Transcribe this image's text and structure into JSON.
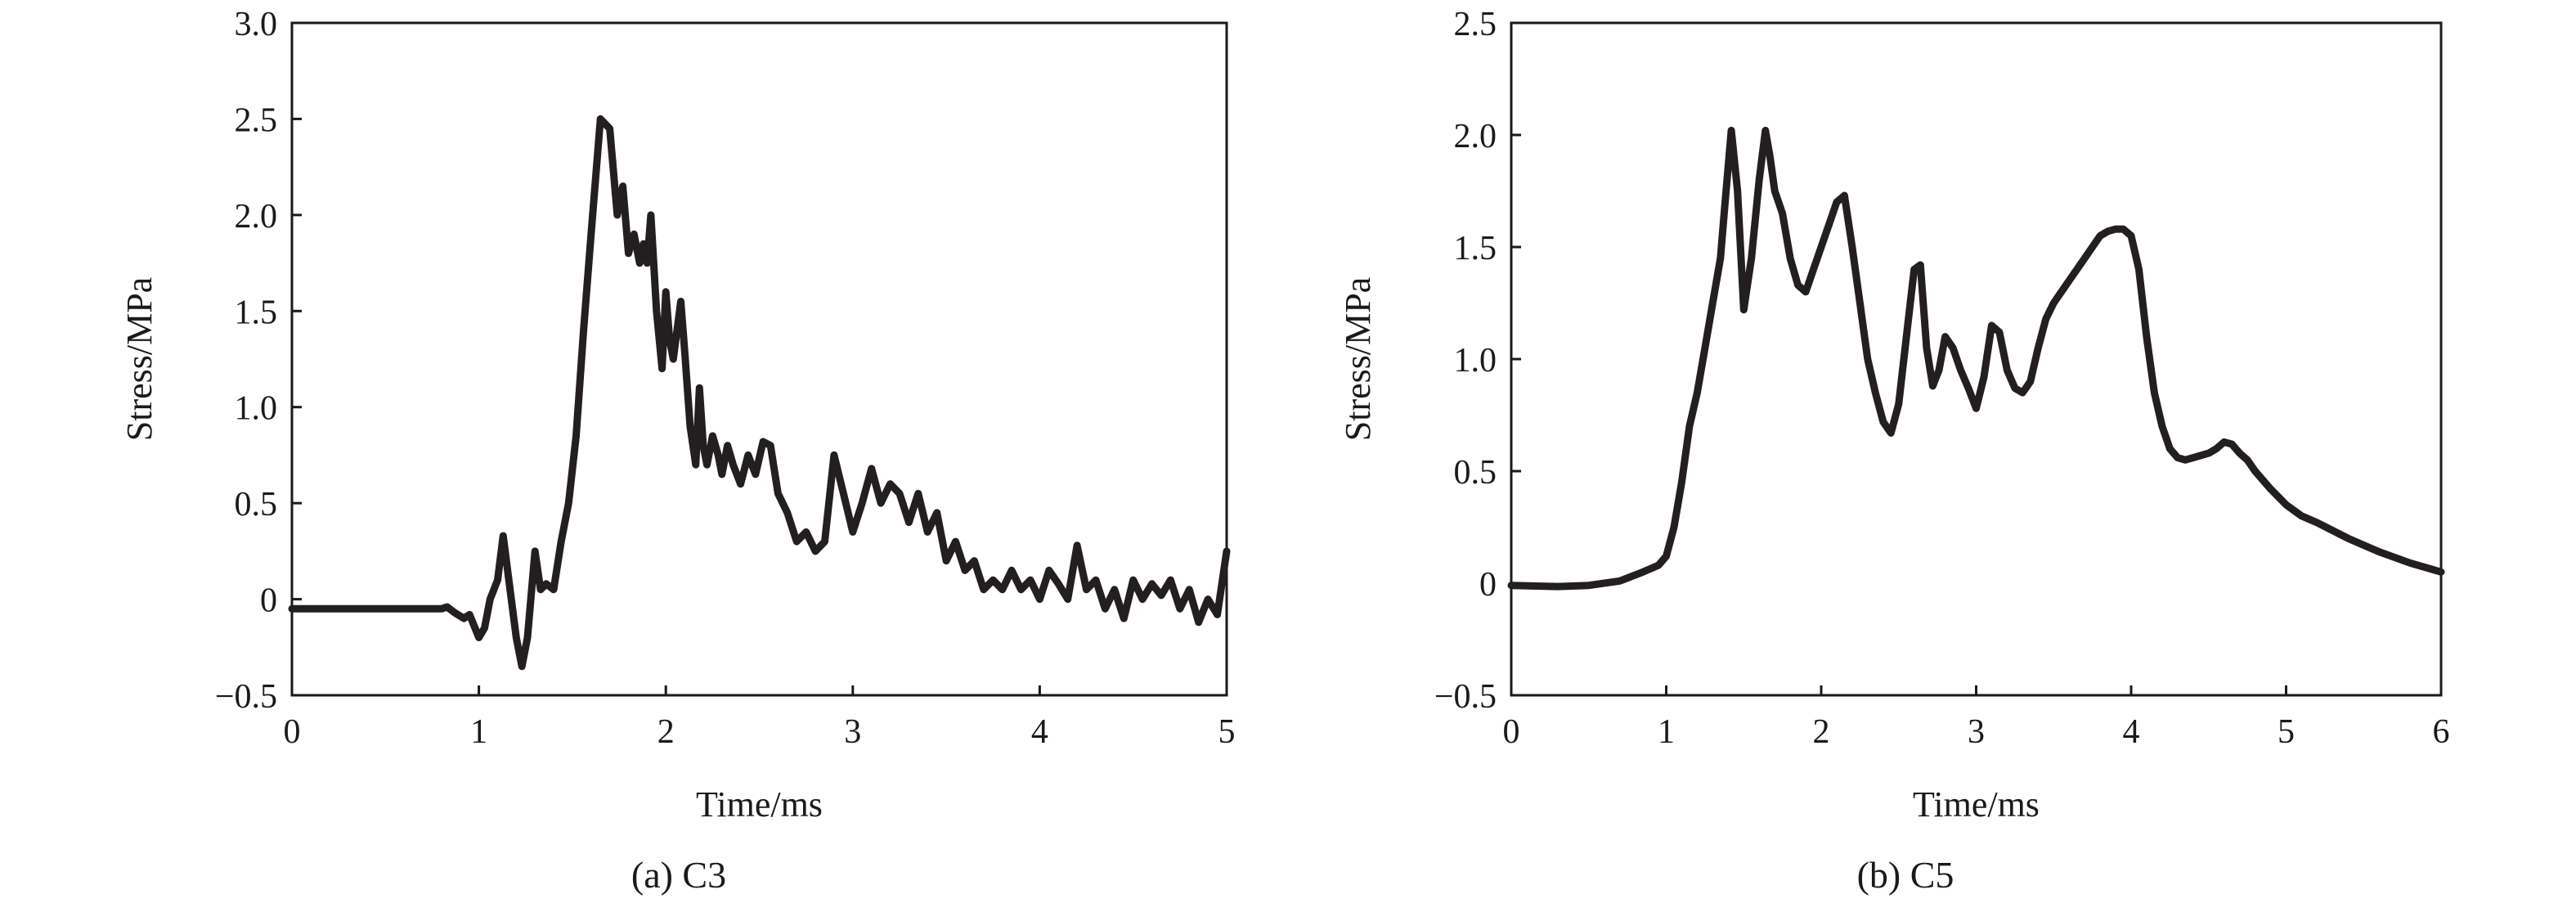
{
  "chart_data": [
    {
      "type": "line",
      "caption": "(a) C3",
      "xlabel": "Time/ms",
      "ylabel": "Stress/MPa",
      "xlim": [
        0,
        5
      ],
      "ylim": [
        -0.5,
        3.0
      ],
      "xticks": [
        0,
        1,
        2,
        3,
        4,
        5
      ],
      "xtick_labels": [
        "0",
        "1",
        "2",
        "3",
        "4",
        "5"
      ],
      "yticks": [
        -0.5,
        0,
        0.5,
        1.0,
        1.5,
        2.0,
        2.5,
        3.0
      ],
      "ytick_labels": [
        "−0.5",
        "0",
        "0.5",
        "1.0",
        "1.5",
        "2.0",
        "2.5",
        "3.0"
      ],
      "grid": false,
      "series": [
        {
          "x": [
            0,
            0.8,
            0.83,
            0.87,
            0.92,
            0.95,
            1.0,
            1.03,
            1.06,
            1.1,
            1.13,
            1.16,
            1.2,
            1.23,
            1.26,
            1.3,
            1.33,
            1.36,
            1.4,
            1.44,
            1.48,
            1.52,
            1.56,
            1.6,
            1.65,
            1.7,
            1.74,
            1.77,
            1.8,
            1.83,
            1.86,
            1.88,
            1.9,
            1.92,
            1.95,
            1.98,
            2.0,
            2.02,
            2.04,
            2.06,
            2.08,
            2.1,
            2.13,
            2.16,
            2.18,
            2.2,
            2.22,
            2.25,
            2.28,
            2.3,
            2.33,
            2.36,
            2.4,
            2.44,
            2.48,
            2.52,
            2.56,
            2.6,
            2.65,
            2.7,
            2.75,
            2.8,
            2.85,
            2.9,
            2.95,
            3.0,
            3.05,
            3.1,
            3.15,
            3.2,
            3.25,
            3.3,
            3.35,
            3.4,
            3.45,
            3.5,
            3.55,
            3.6,
            3.65,
            3.7,
            3.75,
            3.8,
            3.85,
            3.9,
            3.95,
            4.0,
            4.05,
            4.1,
            4.15,
            4.2,
            4.25,
            4.3,
            4.35,
            4.4,
            4.45,
            4.5,
            4.55,
            4.6,
            4.65,
            4.7,
            4.75,
            4.8,
            4.85,
            4.9,
            4.95,
            5.0
          ],
          "y": [
            -0.05,
            -0.05,
            -0.04,
            -0.07,
            -0.1,
            -0.08,
            -0.2,
            -0.15,
            0.0,
            0.1,
            0.33,
            0.1,
            -0.2,
            -0.35,
            -0.2,
            0.25,
            0.05,
            0.08,
            0.05,
            0.3,
            0.5,
            0.85,
            1.4,
            1.9,
            2.5,
            2.45,
            2.0,
            2.15,
            1.8,
            1.9,
            1.75,
            1.85,
            1.75,
            2.0,
            1.5,
            1.2,
            1.6,
            1.35,
            1.25,
            1.4,
            1.55,
            1.3,
            0.9,
            0.7,
            1.1,
            0.8,
            0.7,
            0.85,
            0.75,
            0.65,
            0.8,
            0.7,
            0.6,
            0.75,
            0.65,
            0.82,
            0.8,
            0.55,
            0.45,
            0.3,
            0.35,
            0.25,
            0.3,
            0.75,
            0.55,
            0.35,
            0.5,
            0.68,
            0.5,
            0.6,
            0.55,
            0.4,
            0.55,
            0.35,
            0.45,
            0.2,
            0.3,
            0.15,
            0.2,
            0.05,
            0.1,
            0.05,
            0.15,
            0.05,
            0.1,
            0.0,
            0.15,
            0.08,
            0.0,
            0.28,
            0.05,
            0.1,
            -0.05,
            0.05,
            -0.1,
            0.1,
            0.0,
            0.08,
            0.02,
            0.1,
            -0.05,
            0.05,
            -0.12,
            0.0,
            -0.08,
            0.25
          ]
        }
      ]
    },
    {
      "type": "line",
      "caption": "(b) C5",
      "xlabel": "Time/ms",
      "ylabel": "Stress/MPa",
      "xlim": [
        0,
        6
      ],
      "ylim": [
        -0.5,
        2.5
      ],
      "xticks": [
        0,
        1,
        2,
        3,
        4,
        5,
        6
      ],
      "xtick_labels": [
        "0",
        "1",
        "2",
        "3",
        "4",
        "5",
        "6"
      ],
      "yticks": [
        -0.5,
        0,
        0.5,
        1.0,
        1.5,
        2.0,
        2.5
      ],
      "ytick_labels": [
        "−0.5",
        "0",
        "0.5",
        "1.0",
        "1.5",
        "2.0",
        "2.5"
      ],
      "grid": false,
      "series": [
        {
          "x": [
            0,
            0.3,
            0.5,
            0.7,
            0.85,
            0.95,
            1.0,
            1.05,
            1.1,
            1.15,
            1.2,
            1.25,
            1.3,
            1.35,
            1.38,
            1.42,
            1.46,
            1.5,
            1.55,
            1.6,
            1.64,
            1.67,
            1.7,
            1.75,
            1.8,
            1.85,
            1.9,
            1.95,
            2.0,
            2.05,
            2.1,
            2.15,
            2.2,
            2.25,
            2.3,
            2.35,
            2.4,
            2.45,
            2.5,
            2.55,
            2.6,
            2.64,
            2.68,
            2.72,
            2.76,
            2.8,
            2.85,
            2.9,
            2.95,
            3.0,
            3.05,
            3.1,
            3.15,
            3.2,
            3.25,
            3.3,
            3.35,
            3.4,
            3.45,
            3.5,
            3.55,
            3.6,
            3.65,
            3.7,
            3.75,
            3.8,
            3.85,
            3.9,
            3.95,
            4.0,
            4.05,
            4.1,
            4.15,
            4.2,
            4.25,
            4.3,
            4.35,
            4.4,
            4.45,
            4.5,
            4.55,
            4.6,
            4.65,
            4.7,
            4.75,
            4.8,
            4.9,
            5.0,
            5.1,
            5.2,
            5.4,
            5.6,
            5.8,
            6.0
          ],
          "y": [
            -0.01,
            -0.015,
            -0.01,
            0.01,
            0.05,
            0.08,
            0.12,
            0.25,
            0.45,
            0.7,
            0.85,
            1.05,
            1.25,
            1.45,
            1.7,
            2.02,
            1.75,
            1.22,
            1.45,
            1.8,
            2.02,
            1.9,
            1.75,
            1.65,
            1.45,
            1.33,
            1.3,
            1.4,
            1.5,
            1.6,
            1.7,
            1.73,
            1.5,
            1.25,
            1.0,
            0.85,
            0.72,
            0.67,
            0.8,
            1.1,
            1.4,
            1.42,
            1.05,
            0.88,
            0.95,
            1.1,
            1.05,
            0.95,
            0.87,
            0.78,
            0.92,
            1.15,
            1.12,
            0.95,
            0.87,
            0.85,
            0.9,
            1.05,
            1.18,
            1.25,
            1.3,
            1.35,
            1.4,
            1.45,
            1.5,
            1.55,
            1.57,
            1.58,
            1.58,
            1.55,
            1.4,
            1.1,
            0.85,
            0.7,
            0.6,
            0.56,
            0.55,
            0.56,
            0.57,
            0.58,
            0.6,
            0.63,
            0.62,
            0.58,
            0.55,
            0.5,
            0.42,
            0.35,
            0.3,
            0.27,
            0.2,
            0.14,
            0.09,
            0.05
          ]
        }
      ]
    }
  ]
}
